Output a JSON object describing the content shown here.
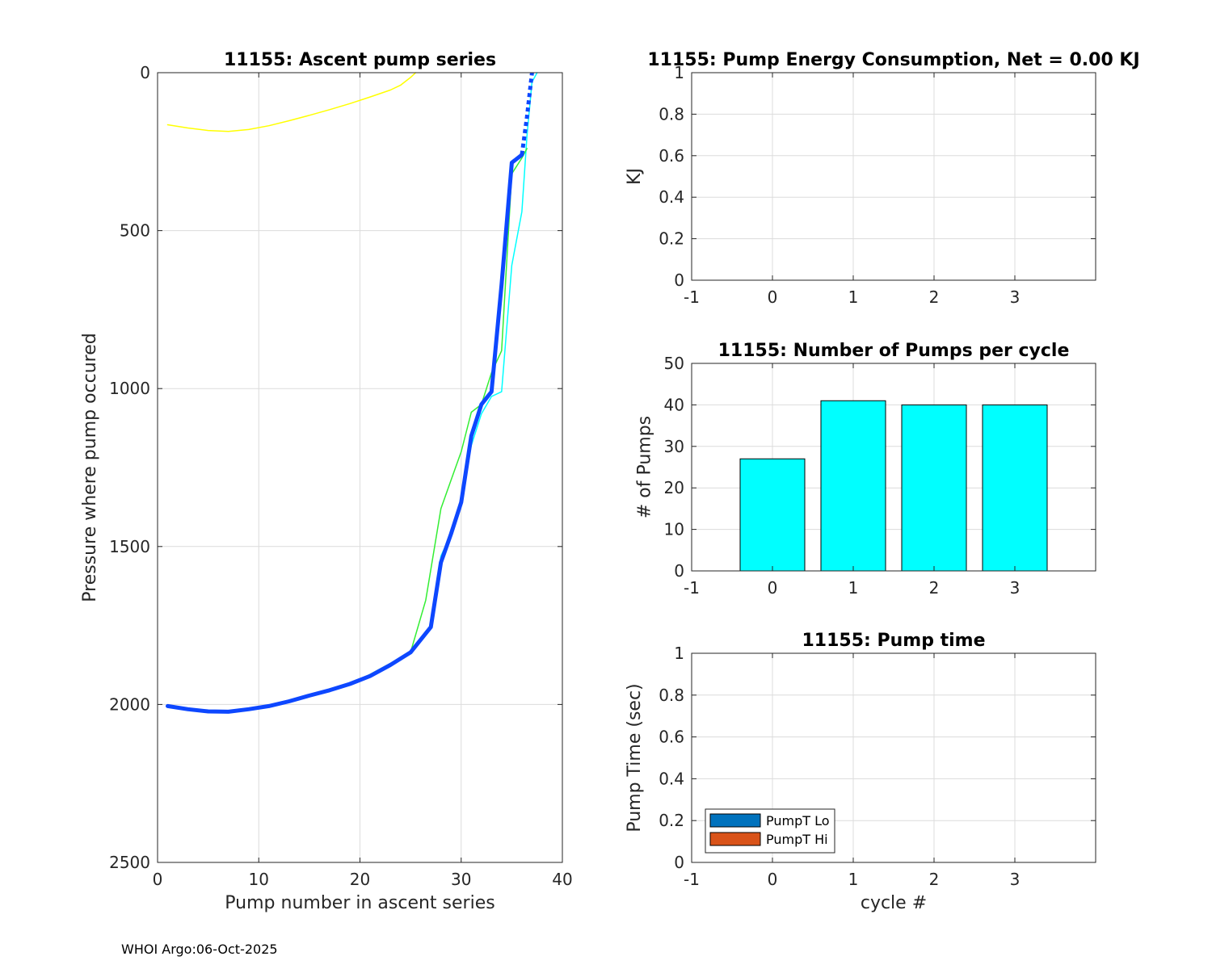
{
  "footer": "WHOI Argo:06-Oct-2025",
  "chart_data": [
    {
      "id": "ascent",
      "type": "line",
      "title": "11155: Ascent pump series",
      "xlabel": "Pump number in ascent series",
      "ylabel": "Pressure where pump occured",
      "xlim": [
        0,
        40
      ],
      "ylim": [
        0,
        2500
      ],
      "y_reversed": true,
      "grid": true,
      "xticks": [
        0,
        10,
        20,
        30,
        40
      ],
      "yticks": [
        0,
        500,
        1000,
        1500,
        2000,
        2500
      ],
      "series": [
        {
          "color": "#ffff00",
          "width": 1.5,
          "x": [
            1,
            3,
            5,
            7,
            9,
            11,
            13,
            15,
            17,
            19,
            21,
            23,
            24,
            25,
            25.5
          ],
          "y": [
            165,
            175,
            183,
            186,
            180,
            168,
            152,
            135,
            117,
            98,
            77,
            55,
            40,
            15,
            0
          ]
        },
        {
          "color": "#00ffff",
          "width": 1.5,
          "x": [
            1,
            3,
            5,
            7,
            9,
            11,
            13,
            15,
            17,
            19,
            21,
            23,
            25,
            27,
            28,
            29,
            30,
            31,
            32,
            33,
            34,
            35,
            36,
            36.5,
            37,
            37.5
          ],
          "y": [
            2005,
            2015,
            2022,
            2023,
            2015,
            2005,
            1990,
            1972,
            1955,
            1935,
            1910,
            1878,
            1835,
            1760,
            1530,
            1460,
            1350,
            1180,
            1080,
            1025,
            1010,
            610,
            440,
            200,
            30,
            0
          ]
        },
        {
          "color": "#33ee33",
          "width": 1.5,
          "x": [
            1,
            3,
            5,
            7,
            9,
            11,
            13,
            15,
            17,
            19,
            21,
            23,
            25,
            26.5,
            28,
            29,
            30,
            31,
            32,
            33,
            34,
            35,
            36,
            36.5
          ],
          "y": [
            2005,
            2015,
            2022,
            2023,
            2015,
            2005,
            1990,
            1972,
            1955,
            1935,
            1905,
            1870,
            1835,
            1670,
            1380,
            1290,
            1200,
            1075,
            1050,
            950,
            880,
            320,
            270,
            240
          ]
        },
        {
          "color": "#0d47ff",
          "width": 5,
          "x": [
            1,
            3,
            5,
            7,
            9,
            11,
            13,
            15,
            17,
            19,
            21,
            23,
            25,
            27,
            28,
            29,
            30,
            31,
            32,
            33,
            34,
            35,
            36
          ],
          "y": [
            2005,
            2015,
            2022,
            2023,
            2015,
            2005,
            1990,
            1972,
            1955,
            1935,
            1910,
            1875,
            1835,
            1755,
            1550,
            1460,
            1360,
            1150,
            1050,
            1010,
            670,
            285,
            260
          ]
        },
        {
          "color": "#0d47ff",
          "width": 5,
          "dashed": true,
          "x": [
            36,
            36.5,
            37
          ],
          "y": [
            260,
            140,
            0
          ]
        }
      ]
    },
    {
      "id": "energy",
      "type": "bar",
      "title": "11155: Pump Energy Consumption,  Net =   0.00 KJ",
      "xlabel": "",
      "ylabel": "KJ",
      "xlim": [
        -1,
        4
      ],
      "ylim": [
        0,
        1
      ],
      "grid": true,
      "xticks": [
        -1,
        0,
        1,
        2,
        3
      ],
      "yticks": [
        0,
        0.2,
        0.4,
        0.6,
        0.8,
        1
      ],
      "series": []
    },
    {
      "id": "pumps",
      "type": "bar",
      "title": "11155: Number of Pumps per cycle",
      "xlabel": "",
      "ylabel": "# of Pumps",
      "xlim": [
        -1,
        4
      ],
      "ylim": [
        0,
        50
      ],
      "grid": true,
      "xticks": [
        -1,
        0,
        1,
        2,
        3
      ],
      "yticks": [
        0,
        10,
        20,
        30,
        40,
        50
      ],
      "bar_color": "#00ffff",
      "bars": [
        {
          "x": 0,
          "value": 27
        },
        {
          "x": 1,
          "value": 41
        },
        {
          "x": 2,
          "value": 40
        },
        {
          "x": 3,
          "value": 40
        }
      ]
    },
    {
      "id": "pumptime",
      "type": "bar",
      "title": "11155: Pump time",
      "xlabel": "cycle #",
      "ylabel": "Pump Time (sec)",
      "xlim": [
        -1,
        4
      ],
      "ylim": [
        0,
        1
      ],
      "grid": true,
      "xticks": [
        -1,
        0,
        1,
        2,
        3
      ],
      "yticks": [
        0,
        0.2,
        0.4,
        0.6,
        0.8,
        1
      ],
      "legend_position": "bottom-left",
      "legend": [
        {
          "name": "PumpT Lo",
          "color": "#0072bd"
        },
        {
          "name": "PumpT Hi",
          "color": "#d95319"
        }
      ]
    }
  ]
}
